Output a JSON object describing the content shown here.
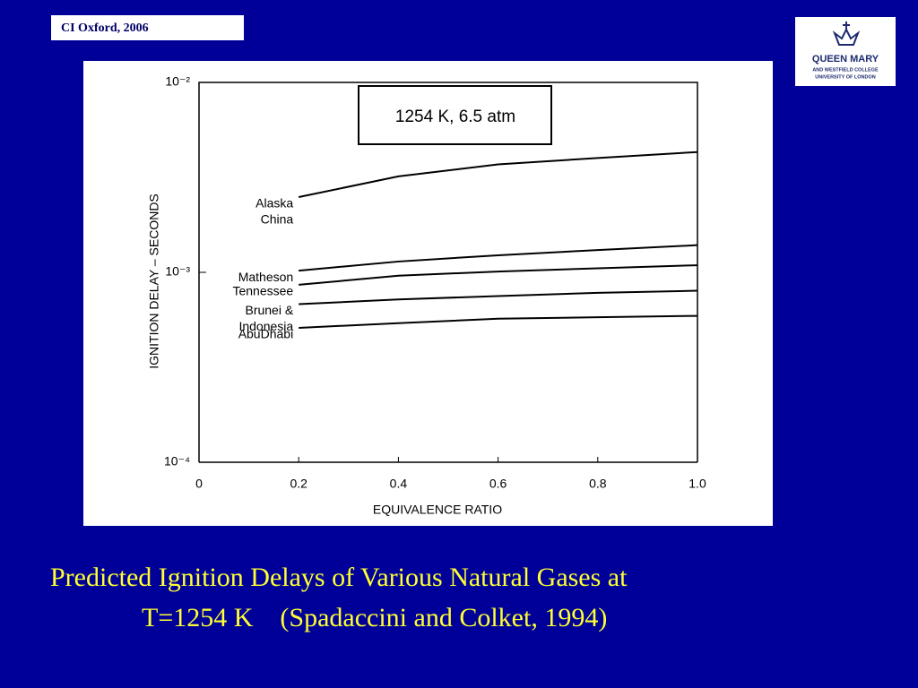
{
  "header": {
    "label": "CI  Oxford, 2006"
  },
  "logo": {
    "name": "QUEEN MARY",
    "line1": "AND WESTFIELD COLLEGE",
    "line2": "UNIVERSITY OF LONDON"
  },
  "caption": {
    "line1": "Predicted Ignition Delays of Various Natural Gases at",
    "line2": "T=1254 K    (Spadaccini and Colket, 1994)"
  },
  "chart_data": {
    "type": "line",
    "annotation": "1254 K, 6.5 atm",
    "xlabel": "EQUIVALENCE RATIO",
    "ylabel": "IGNITION DELAY – SECONDS",
    "x": [
      0.2,
      0.4,
      0.6,
      0.8,
      1.0
    ],
    "series": [
      {
        "name": [
          "Alaska",
          "China"
        ],
        "color": "#000000",
        "values": [
          0.00249,
          0.0032,
          0.0037,
          0.004,
          0.0043
        ]
      },
      {
        "name": [
          "Matheson"
        ],
        "color": "#000000",
        "values": [
          0.00102,
          0.00114,
          0.00123,
          0.00131,
          0.00139
        ]
      },
      {
        "name": [
          "Tennessee"
        ],
        "color": "#000000",
        "values": [
          0.00086,
          0.00096,
          0.00101,
          0.00105,
          0.00109
        ]
      },
      {
        "name": [
          "Brunei  &",
          "Indonesia"
        ],
        "color": "#000000",
        "values": [
          0.00068,
          0.00072,
          0.00075,
          0.00078,
          0.0008
        ]
      },
      {
        "name": [
          "AbuDhabi"
        ],
        "color": "#000000",
        "values": [
          0.00051,
          0.00054,
          0.00057,
          0.00058,
          0.00059
        ]
      }
    ],
    "xlim": [
      0,
      1.0
    ],
    "xticks": [
      0,
      0.2,
      0.4,
      0.6,
      0.8,
      {
        "value": 1.0,
        "label": "1.0"
      }
    ],
    "ylim": [
      0.0001,
      0.01
    ],
    "yticks": [
      {
        "value": 0.0001,
        "label": "10⁻⁴"
      },
      {
        "value": 0.001,
        "label": "10⁻³"
      },
      {
        "value": 0.01,
        "label": "10⁻²"
      }
    ],
    "log_y": true,
    "grid": false
  }
}
